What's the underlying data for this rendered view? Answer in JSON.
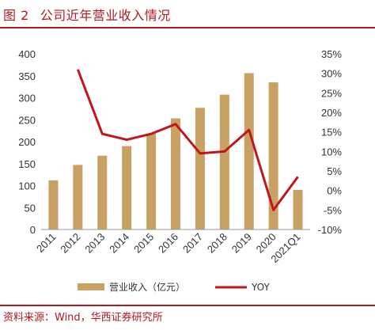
{
  "figure": {
    "number": "图 2",
    "title": "公司近年营业收入情况"
  },
  "source": "资料来源：Wind，华西证券研究所",
  "colors": {
    "bar": "#c8a165",
    "line": "#c0161c",
    "accent": "#b0191e"
  },
  "chart_data": {
    "type": "bar",
    "categories": [
      "2011",
      "2012",
      "2013",
      "2014",
      "2015",
      "2016",
      "2017",
      "2018",
      "2019",
      "2020",
      "2021Q1"
    ],
    "series": [
      {
        "name": "营业收入（亿元）",
        "type": "bar",
        "axis": "left",
        "values": [
          112,
          147,
          168,
          190,
          218,
          253,
          277,
          307,
          356,
          335,
          90
        ]
      },
      {
        "name": "YOY",
        "type": "line",
        "axis": "right",
        "values": [
          null,
          0.31,
          0.145,
          0.13,
          0.145,
          0.17,
          0.095,
          0.1,
          0.155,
          -0.05,
          0.035
        ]
      }
    ],
    "y_left": {
      "lim": [
        0,
        400
      ],
      "ticks": [
        "0",
        "50",
        "100",
        "150",
        "200",
        "250",
        "300",
        "350",
        "400"
      ]
    },
    "y_right": {
      "lim": [
        -0.1,
        0.35
      ],
      "ticks": [
        "-10%",
        "-5%",
        "0%",
        "5%",
        "10%",
        "15%",
        "20%",
        "25%",
        "30%",
        "35%"
      ]
    },
    "grid": false,
    "legend": "bottom"
  }
}
